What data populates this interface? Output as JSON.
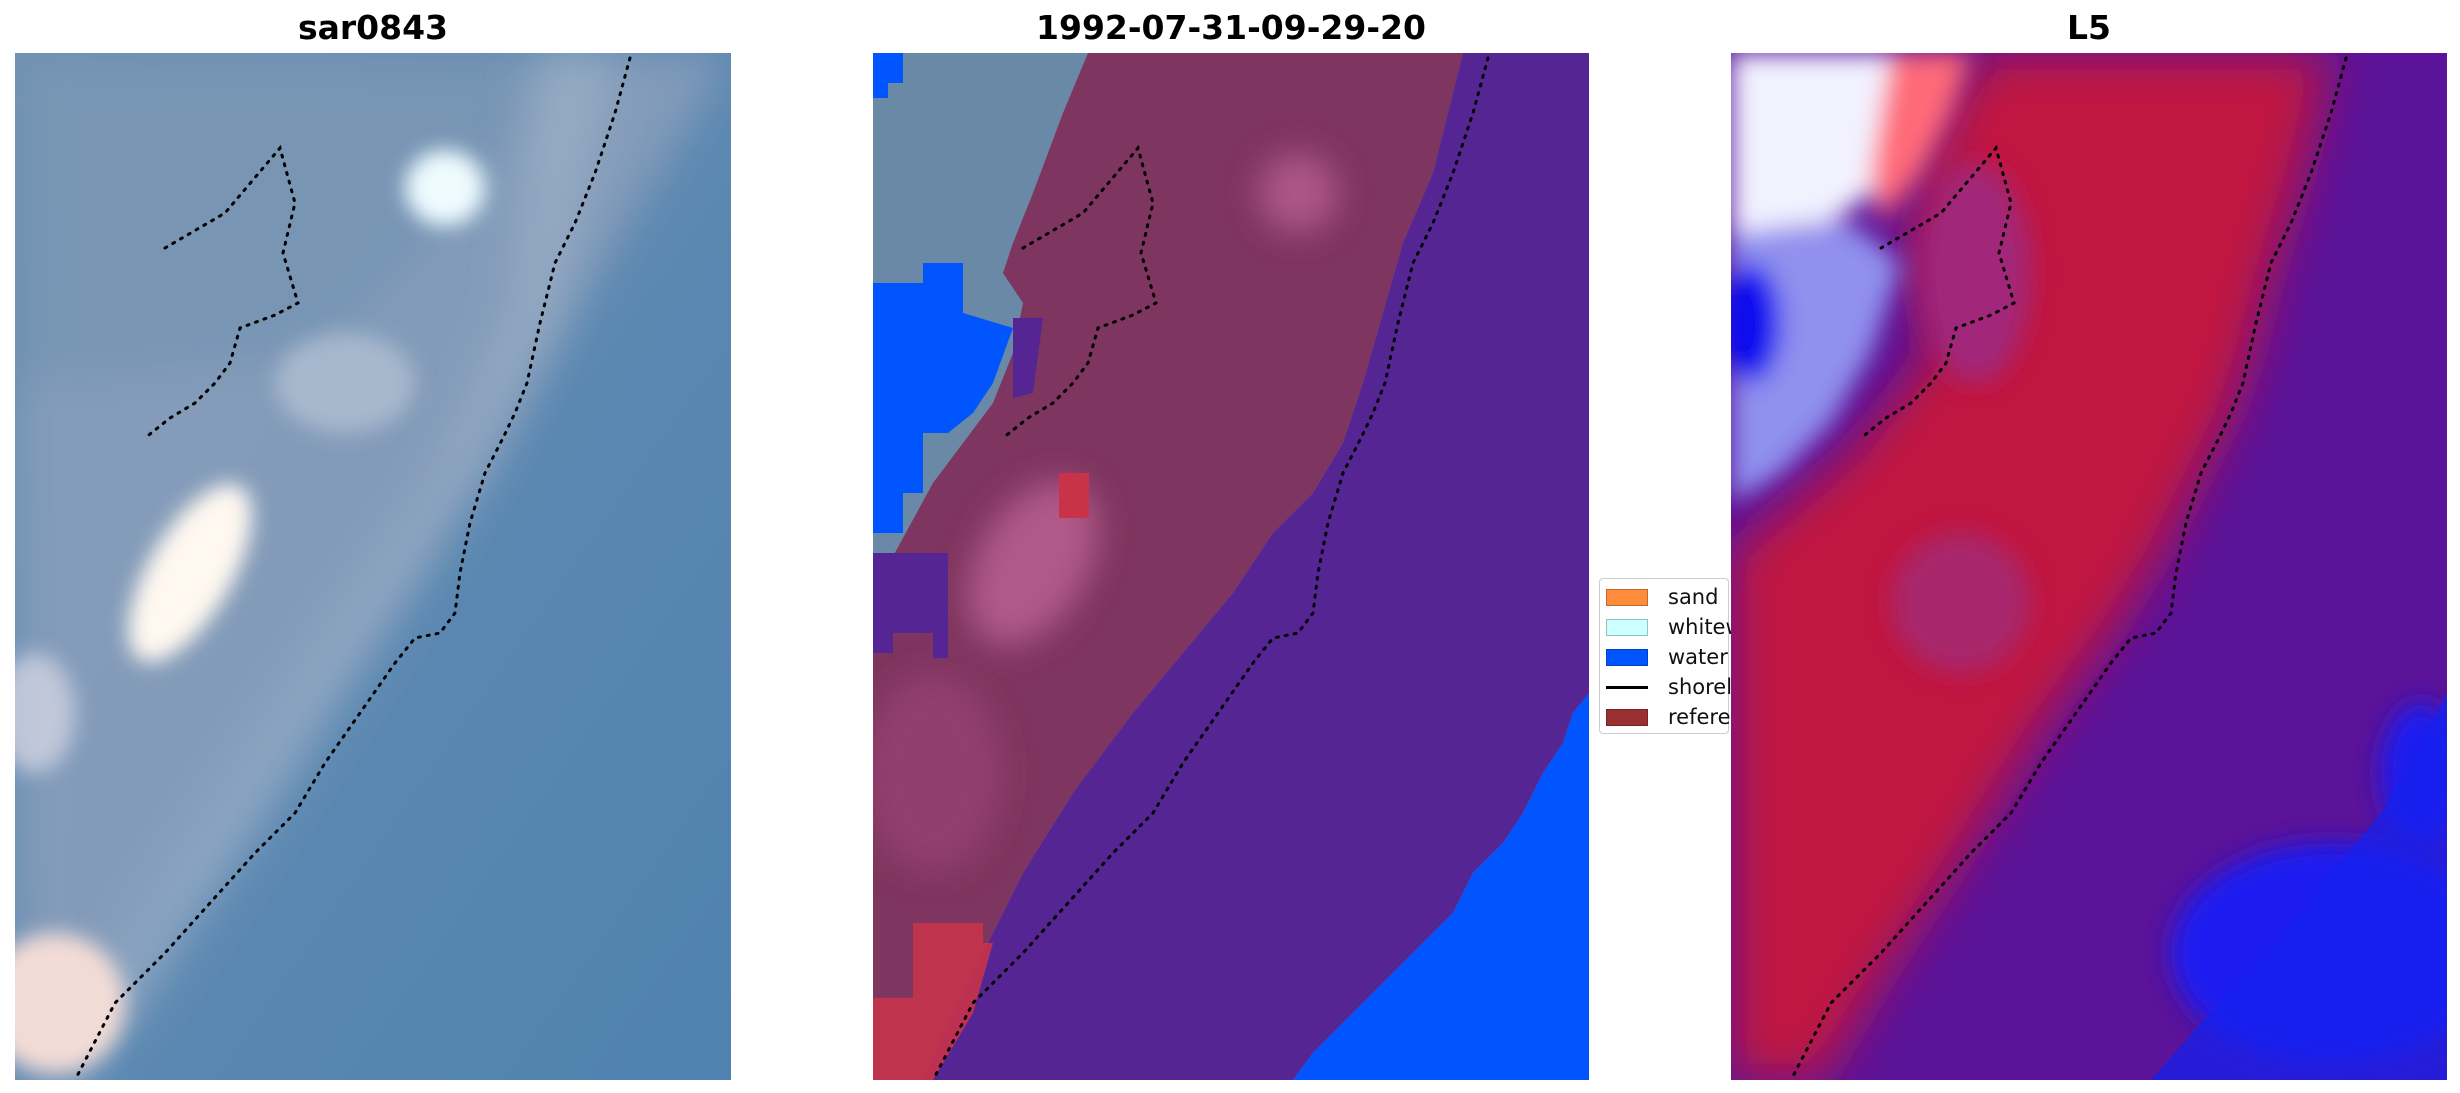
{
  "panels": [
    {
      "title": "sar0843",
      "description_icon": "rgb-image"
    },
    {
      "title": "1992-07-31-09-29-20",
      "description_icon": "classified-image"
    },
    {
      "title": "L5",
      "description_icon": "index-image"
    }
  ],
  "legend": {
    "items": [
      {
        "label": "sand",
        "color": "#ff8c3a",
        "kind": "patch"
      },
      {
        "label": "whitewater",
        "color": "#ccffff",
        "kind": "patch"
      },
      {
        "label": "water",
        "color": "#0055ff",
        "kind": "patch"
      },
      {
        "label": "shoreline",
        "color": "#000000",
        "kind": "line"
      },
      {
        "label": "reference shoreline buffer",
        "color": "#9a3030",
        "kind": "patch"
      }
    ]
  },
  "colors": {
    "water_blue": "#5a86b0",
    "class_sand_land": "#7f355f",
    "class_water": "#0055ff",
    "class_ocean": "#562594",
    "index_land": "#c0153e",
    "index_ocean": "#55109a"
  }
}
